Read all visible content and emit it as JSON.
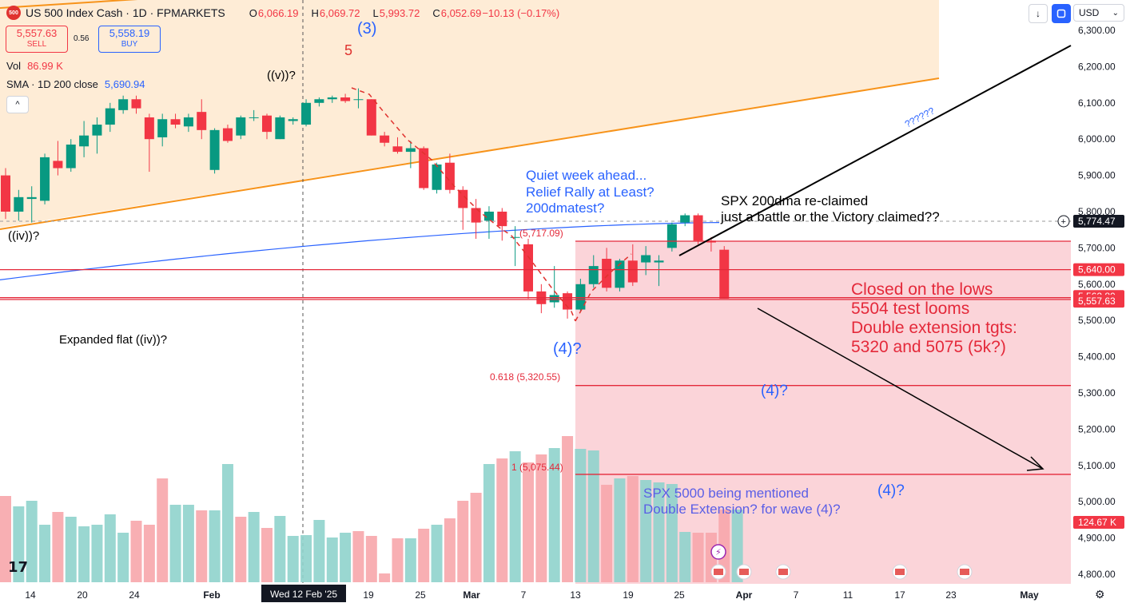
{
  "header": {
    "symbol_badge": "500",
    "title": "US 500 Index Cash · 1D · FPMARKETS",
    "ohlc": {
      "o_label": "O",
      "o": "6,066.19",
      "h_label": "H",
      "h": "6,069.72",
      "l_label": "L",
      "l": "5,993.72",
      "c_label": "C",
      "c": "6,052.69",
      "change": "−10.13 (−0.17%)"
    },
    "sell_price": "5,557.63",
    "sell_label": "SELL",
    "buy_price": "5,558.19",
    "buy_label": "BUY",
    "spread": "0.56",
    "vol_label": "Vol",
    "vol_value": "86.99 K",
    "sma_label": "SMA · 1D 200 close",
    "sma_value": "5,690.94",
    "collapse_icon": "^"
  },
  "toolbar": {
    "currency": "USD",
    "down_icon": "↓",
    "currency_chevron": "⌄"
  },
  "colors": {
    "up": "#089981",
    "down": "#f23645",
    "sma": "#2962ff",
    "channel": "#f7931a"
  },
  "chart_data": {
    "type": "candlestick",
    "symbol": "US 500 Index Cash",
    "interval": "1D",
    "ylim": [
      4760,
      6340
    ],
    "price_ticks": [
      "6,300.00",
      "6,200.00",
      "6,100.00",
      "6,000.00",
      "5,900.00",
      "5,800.00",
      "5,700.00",
      "5,600.00",
      "5,500.00",
      "5,400.00",
      "5,300.00",
      "5,200.00",
      "5,100.00",
      "5,000.00",
      "4,900.00",
      "4,800.00"
    ],
    "x_tick_labels": [
      "14",
      "20",
      "24",
      "Feb",
      "19",
      "25",
      "Mar",
      "7",
      "13",
      "19",
      "25",
      "Apr",
      "7",
      "11",
      "17",
      "23",
      "May"
    ],
    "crosshair_date": "Wed 12 Feb '25",
    "candles": [
      {
        "o": 5900,
        "h": 5920,
        "l": 5780,
        "c": 5800
      },
      {
        "o": 5800,
        "h": 5860,
        "l": 5775,
        "c": 5840
      },
      {
        "o": 5835,
        "h": 5870,
        "l": 5770,
        "c": 5840
      },
      {
        "o": 5830,
        "h": 5960,
        "l": 5820,
        "c": 5950
      },
      {
        "o": 5940,
        "h": 5995,
        "l": 5900,
        "c": 5920
      },
      {
        "o": 5920,
        "h": 6000,
        "l": 5910,
        "c": 5985
      },
      {
        "o": 5980,
        "h": 6050,
        "l": 5950,
        "c": 6010
      },
      {
        "o": 6010,
        "h": 6060,
        "l": 5960,
        "c": 6040
      },
      {
        "o": 6040,
        "h": 6100,
        "l": 6020,
        "c": 6085
      },
      {
        "o": 6080,
        "h": 6120,
        "l": 6070,
        "c": 6110
      },
      {
        "o": 6110,
        "h": 6120,
        "l": 6070,
        "c": 6085
      },
      {
        "o": 6060,
        "h": 6070,
        "l": 5910,
        "c": 6000
      },
      {
        "o": 6005,
        "h": 6070,
        "l": 5980,
        "c": 6055
      },
      {
        "o": 6055,
        "h": 6070,
        "l": 6030,
        "c": 6040
      },
      {
        "o": 6035,
        "h": 6070,
        "l": 6020,
        "c": 6060
      },
      {
        "o": 6075,
        "h": 6110,
        "l": 6000,
        "c": 6025
      },
      {
        "o": 5915,
        "h": 6030,
        "l": 5905,
        "c": 6025
      },
      {
        "o": 6030,
        "h": 6040,
        "l": 5990,
        "c": 5995
      },
      {
        "o": 6010,
        "h": 6065,
        "l": 6000,
        "c": 6060
      },
      {
        "o": 6060,
        "h": 6080,
        "l": 6050,
        "c": 6060
      },
      {
        "o": 6065,
        "h": 6070,
        "l": 6000,
        "c": 6020
      },
      {
        "o": 6000,
        "h": 6065,
        "l": 6000,
        "c": 6060
      },
      {
        "o": 6050,
        "h": 6060,
        "l": 6040,
        "c": 6055
      },
      {
        "o": 6040,
        "h": 6110,
        "l": 6035,
        "c": 6100
      },
      {
        "o": 6100,
        "h": 6115,
        "l": 6090,
        "c": 6110
      },
      {
        "o": 6110,
        "h": 6120,
        "l": 6100,
        "c": 6115
      },
      {
        "o": 6115,
        "h": 6125,
        "l": 6100,
        "c": 6105
      },
      {
        "o": 6110,
        "h": 6140,
        "l": 6085,
        "c": 6110
      },
      {
        "o": 6110,
        "h": 6110,
        "l": 6010,
        "c": 6010
      },
      {
        "o": 6010,
        "h": 6020,
        "l": 5980,
        "c": 5990
      },
      {
        "o": 5980,
        "h": 6005,
        "l": 5960,
        "c": 5965
      },
      {
        "o": 5965,
        "h": 5995,
        "l": 5920,
        "c": 5975
      },
      {
        "o": 5975,
        "h": 5980,
        "l": 5860,
        "c": 5865
      },
      {
        "o": 5860,
        "h": 5935,
        "l": 5850,
        "c": 5930
      },
      {
        "o": 5935,
        "h": 5960,
        "l": 5850,
        "c": 5860
      },
      {
        "o": 5860,
        "h": 5870,
        "l": 5750,
        "c": 5810
      },
      {
        "o": 5810,
        "h": 5835,
        "l": 5725,
        "c": 5770
      },
      {
        "o": 5775,
        "h": 5815,
        "l": 5725,
        "c": 5800
      },
      {
        "o": 5800,
        "h": 5810,
        "l": 5720,
        "c": 5760
      },
      {
        "o": 5730,
        "h": 5760,
        "l": 5650,
        "c": 5730
      },
      {
        "o": 5710,
        "h": 5725,
        "l": 5560,
        "c": 5580
      },
      {
        "o": 5580,
        "h": 5600,
        "l": 5520,
        "c": 5545
      },
      {
        "o": 5550,
        "h": 5650,
        "l": 5535,
        "c": 5570
      },
      {
        "o": 5575,
        "h": 5580,
        "l": 5505,
        "c": 5530
      },
      {
        "o": 5530,
        "h": 5615,
        "l": 5525,
        "c": 5600
      },
      {
        "o": 5600,
        "h": 5680,
        "l": 5590,
        "c": 5650
      },
      {
        "o": 5670,
        "h": 5700,
        "l": 5580,
        "c": 5590
      },
      {
        "o": 5590,
        "h": 5670,
        "l": 5580,
        "c": 5665
      },
      {
        "o": 5665,
        "h": 5710,
        "l": 5595,
        "c": 5605
      },
      {
        "o": 5660,
        "h": 5705,
        "l": 5625,
        "c": 5680
      },
      {
        "o": 5660,
        "h": 5680,
        "l": 5595,
        "c": 5665
      },
      {
        "o": 5700,
        "h": 5770,
        "l": 5690,
        "c": 5765
      },
      {
        "o": 5770,
        "h": 5795,
        "l": 5760,
        "c": 5790
      },
      {
        "o": 5790,
        "h": 5795,
        "l": 5710,
        "c": 5720
      },
      {
        "o": 5720,
        "h": 5730,
        "l": 5690,
        "c": 5715
      },
      {
        "o": 5695,
        "h": 5705,
        "l": 5560,
        "c": 5560
      }
    ],
    "volume_ticks": [],
    "sma_200": [
      [
        0,
        5610
      ],
      [
        10,
        5630
      ],
      [
        20,
        5660
      ],
      [
        30,
        5690
      ],
      [
        40,
        5715
      ],
      [
        50,
        5745
      ],
      [
        58,
        5768
      ]
    ],
    "markers": {
      "current_price": "5,774.47",
      "levels": [
        "5,640.00",
        "5,562.80",
        "5,557.63"
      ],
      "volume_label": "124.67 K"
    },
    "fib_labels": {
      "low": "(5,717.09)",
      "f0618": "0.618 (5,320.55)",
      "f1": "1 (5,075.44)"
    },
    "annotations": {
      "w3": "(3)",
      "w5": "5",
      "wv": "((v))?",
      "wiv": "((iv))?",
      "expanded": "Expanded flat ((iv))?",
      "quiet1": "Quiet week ahead...",
      "quiet2": "Relief Rally at Least?",
      "quiet3": "200dmatest?",
      "spx1": "SPX 200dma re-claimed",
      "spx2": "just a battle or the Victory claimed??",
      "closed1": "Closed on the lows",
      "closed2": "5504 test looms",
      "closed3": "Double extension tgts:",
      "closed4": "5320 and 5075 (5k?)",
      "w4a": "(4)?",
      "w4b": "(4)?",
      "w4c": "(4)?",
      "q": "??????",
      "spx5000a": "SPX 5000 being mentioned",
      "spx5000b": "Double Extension? for wave (4)?"
    }
  }
}
